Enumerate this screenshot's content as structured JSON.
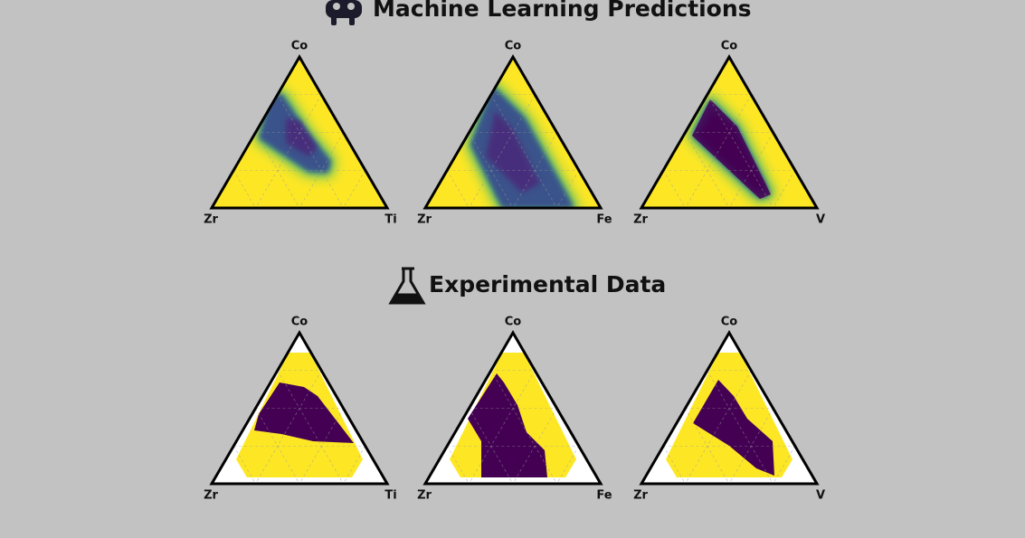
{
  "sections": [
    {
      "title": "Machine Learning Predictions",
      "diagrams": [
        {
          "top": "Co",
          "left": "Zr",
          "right": "Ti"
        },
        {
          "top": "Co",
          "left": "Zr",
          "right": "Fe"
        },
        {
          "top": "Co",
          "left": "Zr",
          "right": "V"
        }
      ]
    },
    {
      "title": "Experimental Data",
      "diagrams": [
        {
          "top": "Co",
          "left": "Zr",
          "right": "Ti"
        },
        {
          "top": "Co",
          "left": "Zr",
          "right": "Fe"
        },
        {
          "top": "Co",
          "left": "Zr",
          "right": "V"
        }
      ]
    }
  ]
}
